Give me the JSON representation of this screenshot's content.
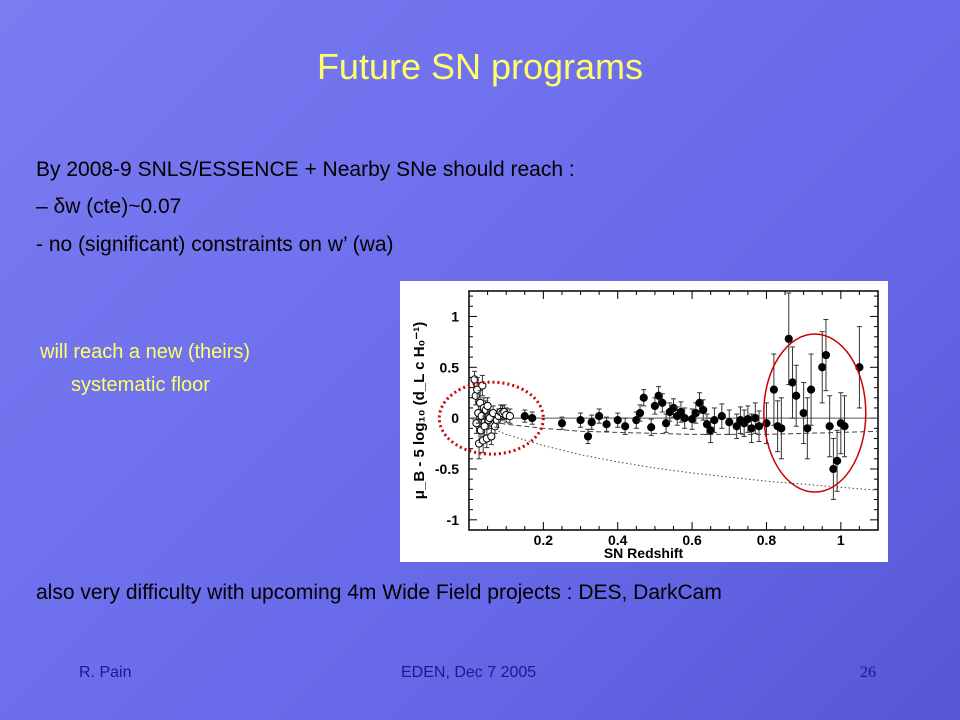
{
  "slide": {
    "title": "Future SN programs",
    "lines": [
      "By 2008-9 SNLS/ESSENCE + Nearby SNe should reach :",
      "–  δw (cte)~0.07",
      "-  no (significant) constraints on w’ (wa)"
    ],
    "callout_line1": "will reach a new (theirs)",
    "callout_line2": "systematic floor",
    "bottom_line": "also very difficulty with upcoming 4m Wide Field projects : DES, DarkCam",
    "footer_left": "R. Pain",
    "footer_center": "EDEN, Dec 7 2005",
    "page_number": "26",
    "colors": {
      "title": "#ffff66",
      "callout": "#ffff66",
      "footer": "#1a1a8a",
      "highlight_nearby": "#cc0000",
      "highlight_highz": "#cc0000"
    }
  },
  "chart_data": {
    "type": "scatter",
    "xlabel": "SN Redshift",
    "ylabel": "μ_B - 5 log₁₀ (d_L c H₀⁻¹)",
    "xlim": [
      0,
      1.1
    ],
    "ylim": [
      -1.1,
      1.25
    ],
    "x_ticks": [
      "0.2",
      "0.4",
      "0.6",
      "0.8",
      "1"
    ],
    "y_ticks": [
      "-1",
      "-0.5",
      "0",
      "0.5",
      "1"
    ],
    "grid": false,
    "series": [
      {
        "marker": "open-circle",
        "points": [
          {
            "x": 0.015,
            "y": 0.38,
            "err": 0.08
          },
          {
            "x": 0.018,
            "y": 0.22,
            "err": 0.09
          },
          {
            "x": 0.02,
            "y": -0.05,
            "err": 0.1
          },
          {
            "x": 0.022,
            "y": 0.28,
            "err": 0.12
          },
          {
            "x": 0.025,
            "y": 0.05,
            "err": 0.1
          },
          {
            "x": 0.027,
            "y": -0.25,
            "err": 0.15
          },
          {
            "x": 0.03,
            "y": 0.15,
            "err": 0.12
          },
          {
            "x": 0.032,
            "y": -0.12,
            "err": 0.12
          },
          {
            "x": 0.034,
            "y": 0.02,
            "err": 0.1
          },
          {
            "x": 0.036,
            "y": 0.32,
            "err": 0.1
          },
          {
            "x": 0.038,
            "y": -0.22,
            "err": 0.12
          },
          {
            "x": 0.04,
            "y": 0.1,
            "err": 0.1
          },
          {
            "x": 0.042,
            "y": -0.08,
            "err": 0.1
          },
          {
            "x": 0.045,
            "y": 0.08,
            "err": 0.09
          },
          {
            "x": 0.048,
            "y": -0.2,
            "err": 0.09
          },
          {
            "x": 0.05,
            "y": 0.12,
            "err": 0.08
          },
          {
            "x": 0.053,
            "y": -0.02,
            "err": 0.08
          },
          {
            "x": 0.056,
            "y": 0.0,
            "err": 0.08
          },
          {
            "x": 0.06,
            "y": -0.18,
            "err": 0.08
          },
          {
            "x": 0.065,
            "y": 0.05,
            "err": 0.07
          },
          {
            "x": 0.07,
            "y": -0.08,
            "err": 0.07
          },
          {
            "x": 0.075,
            "y": -0.02,
            "err": 0.07
          },
          {
            "x": 0.08,
            "y": 0.02,
            "err": 0.07
          },
          {
            "x": 0.085,
            "y": 0.06,
            "err": 0.07
          },
          {
            "x": 0.09,
            "y": 0.05,
            "err": 0.07
          },
          {
            "x": 0.095,
            "y": 0.06,
            "err": 0.07
          },
          {
            "x": 0.1,
            "y": 0.03,
            "err": 0.07
          },
          {
            "x": 0.11,
            "y": 0.02,
            "err": 0.07
          }
        ]
      },
      {
        "marker": "filled-circle",
        "points": [
          {
            "x": 0.15,
            "y": 0.02,
            "err": 0.06
          },
          {
            "x": 0.17,
            "y": 0.0,
            "err": 0.06
          },
          {
            "x": 0.25,
            "y": -0.05,
            "err": 0.06
          },
          {
            "x": 0.3,
            "y": -0.02,
            "err": 0.07
          },
          {
            "x": 0.32,
            "y": -0.18,
            "err": 0.07
          },
          {
            "x": 0.33,
            "y": -0.04,
            "err": 0.07
          },
          {
            "x": 0.35,
            "y": 0.02,
            "err": 0.07
          },
          {
            "x": 0.37,
            "y": -0.06,
            "err": 0.07
          },
          {
            "x": 0.4,
            "y": -0.02,
            "err": 0.07
          },
          {
            "x": 0.42,
            "y": -0.08,
            "err": 0.08
          },
          {
            "x": 0.45,
            "y": -0.02,
            "err": 0.08
          },
          {
            "x": 0.46,
            "y": 0.05,
            "err": 0.08
          },
          {
            "x": 0.47,
            "y": 0.2,
            "err": 0.08
          },
          {
            "x": 0.49,
            "y": -0.09,
            "err": 0.08
          },
          {
            "x": 0.5,
            "y": 0.12,
            "err": 0.08
          },
          {
            "x": 0.51,
            "y": 0.22,
            "err": 0.09
          },
          {
            "x": 0.52,
            "y": 0.15,
            "err": 0.09
          },
          {
            "x": 0.53,
            "y": -0.05,
            "err": 0.09
          },
          {
            "x": 0.54,
            "y": 0.06,
            "err": 0.09
          },
          {
            "x": 0.55,
            "y": 0.1,
            "err": 0.09
          },
          {
            "x": 0.56,
            "y": 0.02,
            "err": 0.09
          },
          {
            "x": 0.57,
            "y": 0.06,
            "err": 0.1
          },
          {
            "x": 0.58,
            "y": 0.0,
            "err": 0.1
          },
          {
            "x": 0.6,
            "y": -0.01,
            "err": 0.1
          },
          {
            "x": 0.61,
            "y": 0.05,
            "err": 0.1
          },
          {
            "x": 0.62,
            "y": 0.15,
            "err": 0.1
          },
          {
            "x": 0.63,
            "y": 0.08,
            "err": 0.1
          },
          {
            "x": 0.64,
            "y": -0.06,
            "err": 0.1
          },
          {
            "x": 0.65,
            "y": -0.12,
            "err": 0.12
          },
          {
            "x": 0.66,
            "y": -0.02,
            "err": 0.12
          },
          {
            "x": 0.68,
            "y": 0.02,
            "err": 0.12
          },
          {
            "x": 0.7,
            "y": -0.04,
            "err": 0.12
          },
          {
            "x": 0.72,
            "y": -0.08,
            "err": 0.12
          },
          {
            "x": 0.73,
            "y": -0.02,
            "err": 0.13
          },
          {
            "x": 0.74,
            "y": -0.05,
            "err": 0.13
          },
          {
            "x": 0.75,
            "y": -0.01,
            "err": 0.13
          },
          {
            "x": 0.76,
            "y": -0.1,
            "err": 0.14
          },
          {
            "x": 0.77,
            "y": 0.0,
            "err": 0.15
          },
          {
            "x": 0.78,
            "y": -0.08,
            "err": 0.15
          },
          {
            "x": 0.8,
            "y": -0.05,
            "err": 0.2
          },
          {
            "x": 0.82,
            "y": 0.28,
            "err": 0.35
          },
          {
            "x": 0.83,
            "y": -0.08,
            "err": 0.25
          },
          {
            "x": 0.84,
            "y": -0.1,
            "err": 0.3
          },
          {
            "x": 0.86,
            "y": 0.78,
            "err": 0.45
          },
          {
            "x": 0.87,
            "y": 0.35,
            "err": 0.35
          },
          {
            "x": 0.88,
            "y": 0.22,
            "err": 0.3
          },
          {
            "x": 0.9,
            "y": 0.05,
            "err": 0.3
          },
          {
            "x": 0.91,
            "y": -0.1,
            "err": 0.3
          },
          {
            "x": 0.92,
            "y": 0.28,
            "err": 0.35
          },
          {
            "x": 0.95,
            "y": 0.5,
            "err": 0.35
          },
          {
            "x": 0.96,
            "y": 0.62,
            "err": 0.35
          },
          {
            "x": 0.97,
            "y": -0.08,
            "err": 0.3
          },
          {
            "x": 0.98,
            "y": -0.5,
            "err": 0.3
          },
          {
            "x": 0.99,
            "y": -0.42,
            "err": 0.3
          },
          {
            "x": 1.0,
            "y": -0.05,
            "err": 0.3
          },
          {
            "x": 1.01,
            "y": -0.08,
            "err": 0.3
          },
          {
            "x": 1.05,
            "y": 0.5,
            "err": 0.4
          }
        ]
      }
    ],
    "curves": [
      {
        "style": "solid",
        "points": [
          [
            0,
            0
          ],
          [
            1.1,
            0
          ]
        ]
      },
      {
        "style": "dashed",
        "points": [
          [
            0,
            0
          ],
          [
            0.1,
            -0.06
          ],
          [
            0.2,
            -0.1
          ],
          [
            0.3,
            -0.13
          ],
          [
            0.4,
            -0.14
          ],
          [
            0.5,
            -0.15
          ],
          [
            0.6,
            -0.16
          ],
          [
            0.7,
            -0.16
          ],
          [
            0.8,
            -0.16
          ],
          [
            0.9,
            -0.15
          ],
          [
            1.0,
            -0.14
          ],
          [
            1.1,
            -0.13
          ]
        ]
      },
      {
        "style": "dotted",
        "points": [
          [
            0,
            0
          ],
          [
            0.1,
            -0.16
          ],
          [
            0.2,
            -0.27
          ],
          [
            0.3,
            -0.36
          ],
          [
            0.4,
            -0.43
          ],
          [
            0.5,
            -0.49
          ],
          [
            0.6,
            -0.54
          ],
          [
            0.7,
            -0.58
          ],
          [
            0.8,
            -0.62
          ],
          [
            0.9,
            -0.65
          ],
          [
            1.0,
            -0.68
          ],
          [
            1.1,
            -0.71
          ]
        ]
      }
    ]
  }
}
